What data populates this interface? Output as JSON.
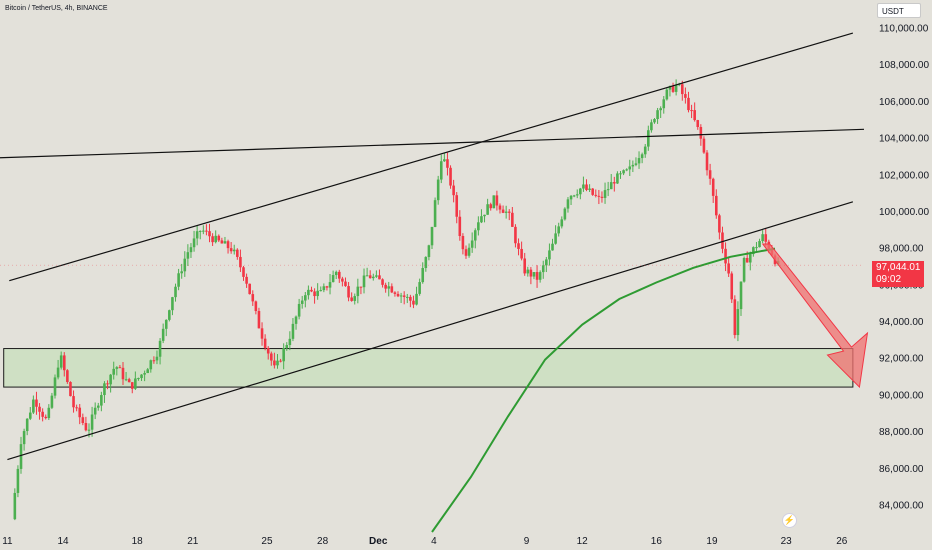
{
  "header": {
    "title": "Bitcoin / TetherUS, 4h, BINANCE",
    "currency": "USDT"
  },
  "price_tag": {
    "price": "97,044.01",
    "countdown": "09:02"
  },
  "colors": {
    "background": "#e3e1da",
    "up": "#4caf50",
    "down": "#f23645",
    "ma": "#2e9b32",
    "zone_fill": "#cfe0c4",
    "arrow": "#f07070"
  },
  "chart_data": {
    "type": "line",
    "title": "Bitcoin / TetherUS, 4h, BINANCE",
    "y_axis": {
      "ticks": [
        84000,
        86000,
        88000,
        90000,
        92000,
        94000,
        96000,
        98000,
        100000,
        102000,
        104000,
        106000,
        108000,
        110000
      ],
      "tick_labels": [
        "84,000.00",
        "86,000.00",
        "88,000.00",
        "90,000.00",
        "92,000.00",
        "94,000.00",
        "96,000.00",
        "98,000.00",
        "100,000.00",
        "102,000.00",
        "104,000.00",
        "106,000.00",
        "108,000.00",
        "110,000.00"
      ],
      "range": [
        82500,
        111500
      ],
      "side": "right"
    },
    "x_axis": {
      "ticks": [
        "11",
        "14",
        "18",
        "21",
        "25",
        "28",
        "Dec",
        "4",
        "9",
        "12",
        "16",
        "19",
        "23",
        "26"
      ],
      "tick_values": [
        11,
        14,
        18,
        21,
        25,
        28,
        31,
        34,
        39,
        42,
        46,
        49,
        53,
        56
      ],
      "range": [
        10.6,
        57.2
      ]
    },
    "price_series": {
      "name": "",
      "points": [
        [
          11.4,
          83200
        ],
        [
          11.9,
          87500
        ],
        [
          12.6,
          89800
        ],
        [
          13.3,
          88500
        ],
        [
          14.0,
          92200
        ],
        [
          14.7,
          89400
        ],
        [
          15.5,
          88000
        ],
        [
          16.3,
          90300
        ],
        [
          17.0,
          91600
        ],
        [
          17.8,
          90400
        ],
        [
          18.5,
          91200
        ],
        [
          19.3,
          92400
        ],
        [
          20.0,
          95200
        ],
        [
          20.8,
          97600
        ],
        [
          21.6,
          99000
        ],
        [
          22.4,
          98400
        ],
        [
          23.3,
          97900
        ],
        [
          24.0,
          96400
        ],
        [
          24.8,
          93500
        ],
        [
          25.6,
          91300
        ],
        [
          26.4,
          93200
        ],
        [
          27.2,
          95600
        ],
        [
          28.1,
          95500
        ],
        [
          28.9,
          96700
        ],
        [
          29.7,
          95300
        ],
        [
          30.6,
          96500
        ],
        [
          31.4,
          96100
        ],
        [
          32.3,
          95500
        ],
        [
          33.1,
          95000
        ],
        [
          33.9,
          98000
        ],
        [
          34.6,
          103200
        ],
        [
          35.1,
          101400
        ],
        [
          35.8,
          97500
        ],
        [
          36.6,
          99600
        ],
        [
          37.4,
          100600
        ],
        [
          38.2,
          99800
        ],
        [
          39.0,
          96800
        ],
        [
          39.8,
          96300
        ],
        [
          40.6,
          98200
        ],
        [
          41.4,
          100800
        ],
        [
          42.2,
          101300
        ],
        [
          43.1,
          100600
        ],
        [
          43.9,
          101700
        ],
        [
          44.7,
          102200
        ],
        [
          45.5,
          103500
        ],
        [
          46.1,
          105300
        ],
        [
          46.7,
          106400
        ],
        [
          47.3,
          106900
        ],
        [
          47.9,
          105700
        ],
        [
          48.5,
          104200
        ],
        [
          49.1,
          101500
        ],
        [
          49.6,
          98600
        ],
        [
          50.1,
          96500
        ],
        [
          50.4,
          93400
        ],
        [
          50.9,
          97200
        ],
        [
          51.4,
          97900
        ],
        [
          51.9,
          98600
        ],
        [
          52.4,
          97700
        ],
        [
          52.7,
          97044
        ]
      ]
    },
    "moving_average": {
      "name": "",
      "points": [
        [
          33.9,
          82500
        ],
        [
          36.0,
          85500
        ],
        [
          38.0,
          88800
        ],
        [
          40.0,
          91900
        ],
        [
          42.0,
          93800
        ],
        [
          44.0,
          95200
        ],
        [
          46.0,
          96100
        ],
        [
          48.0,
          96900
        ],
        [
          50.0,
          97500
        ],
        [
          51.6,
          97800
        ],
        [
          52.4,
          97950
        ]
      ]
    },
    "trendlines": [
      {
        "from": [
          11.1,
          96200
        ],
        "to": [
          56.6,
          109700
        ]
      },
      {
        "from": [
          10.6,
          102900
        ],
        "to": [
          57.2,
          104450
        ]
      },
      {
        "from": [
          11.0,
          86450
        ],
        "to": [
          56.6,
          100500
        ]
      }
    ],
    "support_zone": {
      "x_range": [
        10.8,
        56.6
      ],
      "y_range": [
        90400,
        92500
      ]
    },
    "projection_arrow": {
      "from": [
        51.9,
        98200
      ],
      "to": [
        56.2,
        90400
      ]
    },
    "last_price": 97044.01
  }
}
